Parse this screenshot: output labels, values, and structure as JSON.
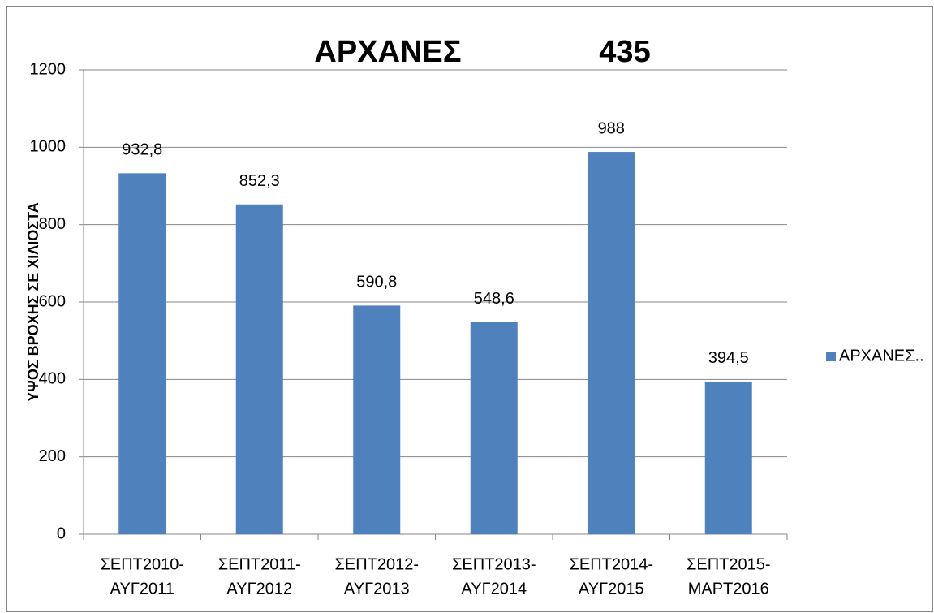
{
  "chart_data": {
    "type": "bar",
    "title": "ΑΡΧΑΝΕΣ",
    "annotation": "435",
    "y_label": "ΥΨΟΣ ΒΡΟΧΗΣ ΣΕ ΧΙΛΙΟΣΤΑ",
    "categories": [
      [
        "ΣΕΠΤ2010-",
        "ΑΥΓ2011"
      ],
      [
        "ΣΕΠΤ2011-",
        "ΑΥΓ2012"
      ],
      [
        "ΣΕΠΤ2012-",
        "ΑΥΓ2013"
      ],
      [
        "ΣΕΠΤ2013-",
        "ΑΥΓ2014"
      ],
      [
        "ΣΕΠΤ2014-",
        "ΑΥΓ2015"
      ],
      [
        "ΣΕΠΤ2015-",
        "ΜΑΡΤ2016"
      ]
    ],
    "series": [
      {
        "name": "ΑΡΧΑΝΕΣ..",
        "color": "#4f81bd",
        "values": [
          932.8,
          852.3,
          590.8,
          548.6,
          988,
          394.5
        ],
        "value_labels": [
          "932,8",
          "852,3",
          "590,8",
          "548,6",
          "988",
          "394,5"
        ]
      }
    ],
    "ylim": [
      0,
      1200
    ],
    "yticks": [
      0,
      200,
      400,
      600,
      800,
      1000,
      1200
    ],
    "grid": true,
    "legend": "right"
  }
}
